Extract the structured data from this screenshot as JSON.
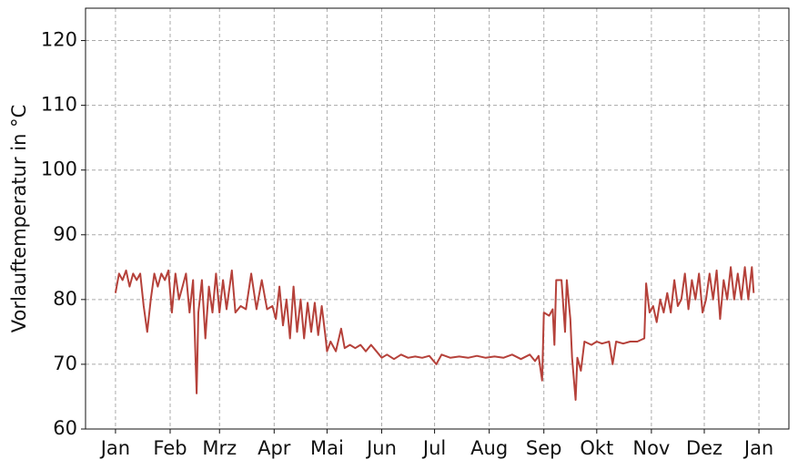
{
  "chart_data": {
    "type": "line",
    "ylabel": "Vorlauftemperatur in °C",
    "ylim": [
      60,
      125
    ],
    "yticks": [
      60,
      70,
      80,
      90,
      100,
      110,
      120
    ],
    "xlim": [
      -17,
      382
    ],
    "xticks": [
      {
        "value": 0,
        "label": "Jan"
      },
      {
        "value": 31,
        "label": "Feb"
      },
      {
        "value": 59,
        "label": "Mrz"
      },
      {
        "value": 90,
        "label": "Apr"
      },
      {
        "value": 120,
        "label": "Mai"
      },
      {
        "value": 151,
        "label": "Jun"
      },
      {
        "value": 181,
        "label": "Jul"
      },
      {
        "value": 212,
        "label": "Aug"
      },
      {
        "value": 243,
        "label": "Sep"
      },
      {
        "value": 273,
        "label": "Okt"
      },
      {
        "value": 304,
        "label": "Nov"
      },
      {
        "value": 334,
        "label": "Dez"
      },
      {
        "value": 365,
        "label": "Jan"
      }
    ],
    "grid": true,
    "color": "#b5413a",
    "x": [
      0,
      2,
      4,
      6,
      8,
      10,
      12,
      14,
      16,
      18,
      20,
      22,
      24,
      26,
      28,
      30,
      32,
      34,
      36,
      38,
      40,
      42,
      44,
      46,
      47,
      49,
      51,
      53,
      55,
      57,
      59,
      61,
      63,
      66,
      68,
      71,
      74,
      77,
      80,
      83,
      86,
      89,
      91,
      93,
      95,
      97,
      99,
      101,
      103,
      105,
      107,
      109,
      111,
      113,
      115,
      117,
      119,
      120,
      122,
      125,
      128,
      130,
      133,
      136,
      139,
      142,
      145,
      148,
      151,
      154,
      158,
      162,
      166,
      170,
      174,
      178,
      182,
      185,
      190,
      195,
      200,
      205,
      210,
      215,
      220,
      225,
      230,
      235,
      238,
      240,
      242,
      243,
      246,
      248,
      249,
      250,
      253,
      255,
      256,
      258,
      259,
      261,
      262,
      264,
      266,
      270,
      273,
      276,
      280,
      282,
      284,
      288,
      292,
      296,
      300,
      301,
      303,
      305,
      307,
      309,
      311,
      313,
      315,
      317,
      319,
      321,
      323,
      325,
      327,
      329,
      331,
      333,
      335,
      337,
      339,
      341,
      343,
      345,
      347,
      349,
      351,
      353,
      355,
      357,
      359,
      361,
      362
    ],
    "values": [
      81,
      84,
      83,
      84.5,
      82,
      84,
      83,
      84,
      79,
      75,
      80,
      84,
      82,
      84,
      83,
      84.5,
      78,
      84,
      80,
      82,
      84,
      78,
      83,
      65.5,
      78,
      83,
      74,
      82,
      78,
      84,
      78,
      83,
      78.5,
      84.5,
      78,
      79,
      78.5,
      84,
      78.5,
      83,
      78.5,
      79,
      77,
      82,
      76,
      80,
      74,
      82,
      75,
      80,
      74,
      79.5,
      75,
      79.5,
      74.5,
      79,
      74.5,
      72,
      73.5,
      72,
      75.5,
      72.5,
      73,
      72.5,
      73,
      72,
      73,
      72,
      71,
      71.5,
      70.8,
      71.5,
      71,
      71.2,
      71,
      71.3,
      70,
      71.5,
      71,
      71.2,
      71,
      71.3,
      71,
      71.2,
      71,
      71.5,
      70.8,
      71.5,
      70.5,
      71.3,
      67.5,
      78,
      77.5,
      78.5,
      73,
      83,
      83,
      75,
      83,
      77,
      71,
      64.5,
      71,
      69,
      73.5,
      73,
      73.5,
      73.2,
      73.5,
      70,
      73.5,
      73.2,
      73.5,
      73.5,
      74,
      82.5,
      78,
      79,
      76.5,
      80,
      78,
      81,
      78,
      83,
      79,
      80,
      84,
      78.5,
      83,
      80,
      84,
      78,
      80,
      84,
      80,
      84.5,
      77,
      83,
      80,
      85,
      80,
      84,
      80,
      85,
      80,
      85,
      81
    ]
  }
}
